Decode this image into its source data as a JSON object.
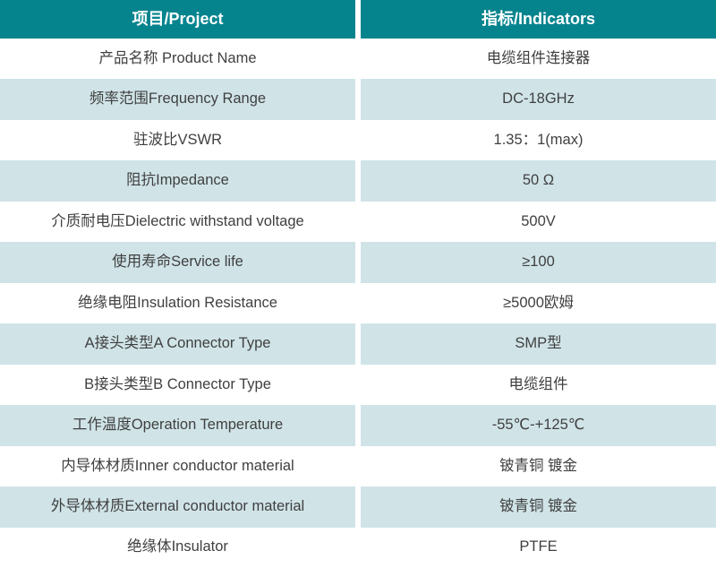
{
  "table": {
    "header": {
      "project_label": "项目/Project",
      "indicators_label": "指标/Indicators"
    },
    "rows": [
      {
        "project": "产品名称 Product Name",
        "indicator": "电缆组件连接器",
        "shaded": false
      },
      {
        "project": "频率范围Frequency Range",
        "indicator": "DC-18GHz",
        "shaded": true
      },
      {
        "project": "驻波比VSWR",
        "indicator": "1.35：1(max)",
        "shaded": false
      },
      {
        "project": "阻抗Impedance",
        "indicator": "50 Ω",
        "shaded": true
      },
      {
        "project": "介质耐电压Dielectric withstand voltage",
        "indicator": "500V",
        "shaded": false
      },
      {
        "project": "使用寿命Service life",
        "indicator": "≥100",
        "shaded": true
      },
      {
        "project": "绝缘电阻Insulation Resistance",
        "indicator": "≥5000欧姆",
        "shaded": false
      },
      {
        "project": "A接头类型A Connector Type",
        "indicator": "SMP型",
        "shaded": true
      },
      {
        "project": "B接头类型B Connector Type",
        "indicator": "电缆组件",
        "shaded": false
      },
      {
        "project": "工作温度Operation Temperature",
        "indicator": "-55℃-+125℃",
        "shaded": true
      },
      {
        "project": "内导体材质Inner conductor material",
        "indicator": "铍青铜 镀金",
        "shaded": false
      },
      {
        "project": "外导体材质External conductor material",
        "indicator": "铍青铜 镀金",
        "shaded": true
      },
      {
        "project": "绝缘体Insulator",
        "indicator": "PTFE",
        "shaded": false
      }
    ]
  },
  "colors": {
    "header_bg": "#06848E",
    "header_text": "#FFFFFF",
    "row_bg": "#FFFFFF",
    "row_alt_bg": "#D0E4E8",
    "body_text": "#404040"
  }
}
